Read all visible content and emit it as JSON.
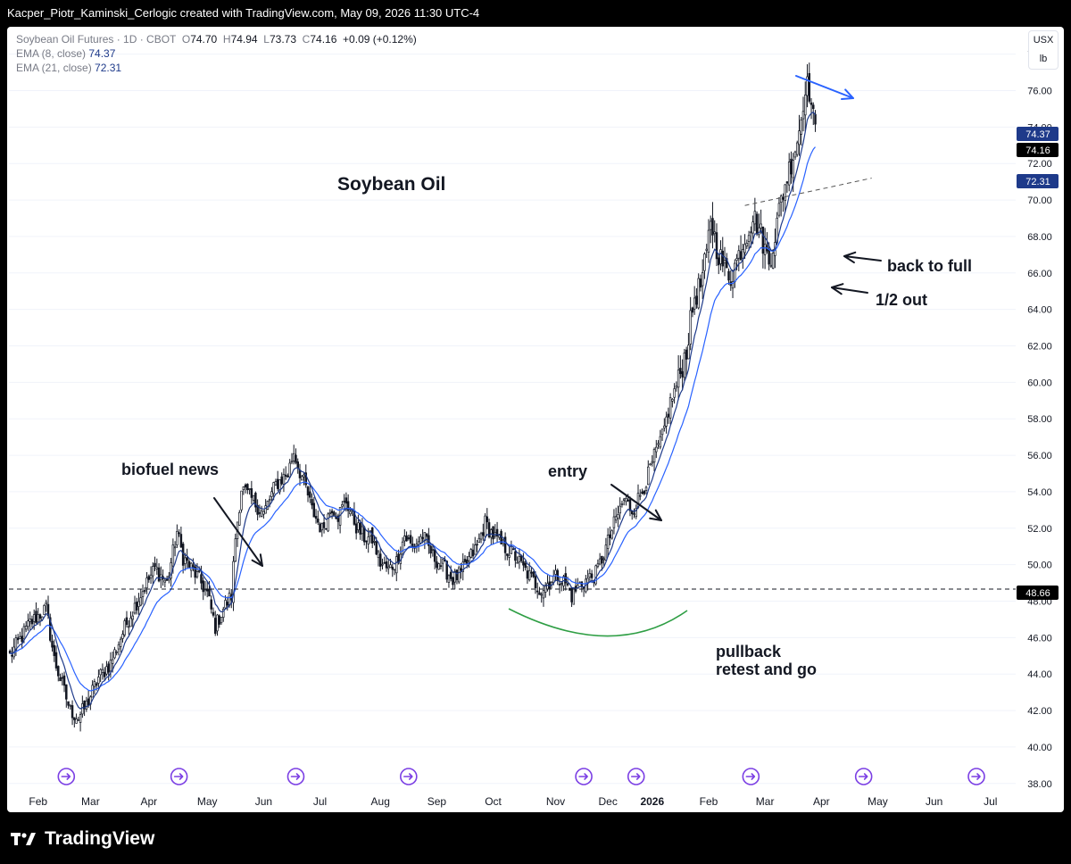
{
  "header": {
    "text": "Kacper_Piotr_Kaminski_Cerlogic created with TradingView.com, May 09, 2026 11:30 UTC-4"
  },
  "legend": {
    "symbol": "Soybean Oil Futures · 1D · CBOT",
    "o_label": "O",
    "o": "74.70",
    "h_label": "H",
    "h": "74.94",
    "l_label": "L",
    "l": "73.73",
    "c_label": "C",
    "c": "74.16",
    "change": "+0.09 (+0.12%)",
    "ema8_label": "EMA (8, close)",
    "ema8": "74.37",
    "ema21_label": "EMA (21, close)",
    "ema21": "72.31"
  },
  "currency": {
    "unit1": "USX",
    "unit2": "lb"
  },
  "annotations": {
    "title": "Soybean Oil",
    "biofuel": "biofuel news",
    "entry": "entry",
    "back_to_full": "back to full",
    "half_out": "1/2 out",
    "pullback_line1": "pullback",
    "pullback_line2": "retest and go"
  },
  "branding": {
    "logo_text": "TradingView"
  },
  "colors": {
    "ema8": "#1e3a8a",
    "ema21": "#2962ff",
    "candle": "#131722",
    "badge_ema8": "#1e3a8a",
    "badge_ema21": "#1e3a8a",
    "badge_price": "#000000",
    "curve": "#2e9e44",
    "arrow_blue": "#2962ff"
  },
  "chart_data": {
    "type": "candlestick",
    "title": "Soybean Oil Futures · 1D · CBOT",
    "ylim": [
      37.5,
      79.5
    ],
    "y_ticks": [
      38,
      40,
      42,
      44,
      46,
      48,
      50,
      52,
      54,
      56,
      58,
      60,
      62,
      64,
      66,
      68,
      70,
      72,
      74,
      76,
      78
    ],
    "y_tick_labels": [
      "38.00",
      "40.00",
      "42.00",
      "44.00",
      "46.00",
      "48.00",
      "50.00",
      "52.00",
      "54.00",
      "56.00",
      "58.00",
      "60.00",
      "62.00",
      "64.00",
      "66.00",
      "68.00",
      "70.00",
      "72.00",
      "74.00",
      "76.00",
      "78.00"
    ],
    "x_tick_labels": [
      "Feb",
      "Mar",
      "Apr",
      "May",
      "Jun",
      "Jul",
      "Aug",
      "Sep",
      "Oct",
      "Nov",
      "Dec",
      "2026",
      "Feb",
      "Mar",
      "Apr",
      "May",
      "Jun",
      "Jul"
    ],
    "x_tick_bold": [
      false,
      false,
      false,
      false,
      false,
      false,
      false,
      false,
      false,
      false,
      false,
      true,
      false,
      false,
      false,
      false,
      false,
      false
    ],
    "x_tick_bar_index": [
      14,
      40,
      69,
      98,
      126,
      154,
      184,
      212,
      240,
      271,
      297,
      319,
      347,
      375,
      403,
      431,
      459,
      487
    ],
    "price_levels": [
      {
        "value": 74.37,
        "label": "74.37",
        "series": "EMA (8, close)"
      },
      {
        "value": 74.16,
        "label": "74.16",
        "series": "close"
      },
      {
        "value": 72.31,
        "label": "72.31",
        "series": "EMA (21, close)"
      },
      {
        "value": 48.66,
        "label": "48.66",
        "series": "horizontal line"
      }
    ],
    "horizontal_line": 48.66,
    "trendline": {
      "from": {
        "bar": 365,
        "price": 69.7
      },
      "to": {
        "bar": 428,
        "price": 71.2
      }
    },
    "event_markers_bar_index": [
      28,
      84,
      142,
      198,
      285,
      311,
      368,
      424,
      480
    ],
    "anchors": [
      [
        0,
        45.0
      ],
      [
        10,
        46.8
      ],
      [
        18,
        47.6
      ],
      [
        22,
        44.8
      ],
      [
        30,
        42.0
      ],
      [
        34,
        41.6
      ],
      [
        38,
        42.3
      ],
      [
        44,
        43.8
      ],
      [
        50,
        44.6
      ],
      [
        55,
        46.0
      ],
      [
        60,
        47.3
      ],
      [
        66,
        48.6
      ],
      [
        72,
        49.8
      ],
      [
        78,
        49.0
      ],
      [
        83,
        51.8
      ],
      [
        86,
        50.4
      ],
      [
        90,
        49.8
      ],
      [
        94,
        49.2
      ],
      [
        98,
        48.4
      ],
      [
        102,
        46.6
      ],
      [
        106,
        47.6
      ],
      [
        110,
        48.3
      ],
      [
        112,
        51.5
      ],
      [
        115,
        54.2
      ],
      [
        120,
        53.6
      ],
      [
        126,
        52.8
      ],
      [
        132,
        54.4
      ],
      [
        138,
        55.0
      ],
      [
        141,
        56.2
      ],
      [
        144,
        55.1
      ],
      [
        147,
        54.2
      ],
      [
        150,
        53.0
      ],
      [
        155,
        51.9
      ],
      [
        160,
        53.2
      ],
      [
        163,
        52.7
      ],
      [
        167,
        53.5
      ],
      [
        172,
        52.1
      ],
      [
        176,
        51.5
      ],
      [
        180,
        51.4
      ],
      [
        184,
        50.1
      ],
      [
        188,
        49.7
      ],
      [
        192,
        50.2
      ],
      [
        196,
        51.6
      ],
      [
        200,
        50.9
      ],
      [
        205,
        51.6
      ],
      [
        210,
        50.5
      ],
      [
        215,
        49.9
      ],
      [
        220,
        49.2
      ],
      [
        224,
        49.5
      ],
      [
        228,
        50.3
      ],
      [
        232,
        51.0
      ],
      [
        236,
        52.3
      ],
      [
        240,
        51.6
      ],
      [
        245,
        51.0
      ],
      [
        250,
        50.6
      ],
      [
        255,
        49.8
      ],
      [
        260,
        49.1
      ],
      [
        264,
        48.6
      ],
      [
        268,
        49.1
      ],
      [
        272,
        49.4
      ],
      [
        276,
        49.0
      ],
      [
        279,
        48.3
      ],
      [
        283,
        48.9
      ],
      [
        287,
        49.2
      ],
      [
        291,
        49.5
      ],
      [
        295,
        50.6
      ],
      [
        300,
        52.2
      ],
      [
        305,
        53.6
      ],
      [
        309,
        53.0
      ],
      [
        313,
        53.8
      ],
      [
        316,
        54.6
      ],
      [
        320,
        55.9
      ],
      [
        324,
        57.0
      ],
      [
        328,
        58.9
      ],
      [
        332,
        60.1
      ],
      [
        336,
        61.8
      ],
      [
        340,
        64.7
      ],
      [
        343,
        65.3
      ],
      [
        346,
        66.9
      ],
      [
        348,
        69.0
      ],
      [
        351,
        67.4
      ],
      [
        355,
        66.2
      ],
      [
        358,
        65.8
      ],
      [
        362,
        67.0
      ],
      [
        366,
        68.2
      ],
      [
        369,
        69.1
      ],
      [
        372,
        68.5
      ],
      [
        375,
        67.3
      ],
      [
        377,
        66.6
      ],
      [
        380,
        68.1
      ],
      [
        383,
        70.0
      ],
      [
        386,
        71.3
      ],
      [
        389,
        72.5
      ],
      [
        391,
        73.3
      ],
      [
        393,
        74.5
      ],
      [
        395,
        76.4
      ],
      [
        397,
        76.0
      ],
      [
        399,
        74.4
      ],
      [
        400,
        74.16
      ]
    ],
    "indicators": [
      "EMA (8, close)",
      "EMA (21, close)"
    ]
  }
}
